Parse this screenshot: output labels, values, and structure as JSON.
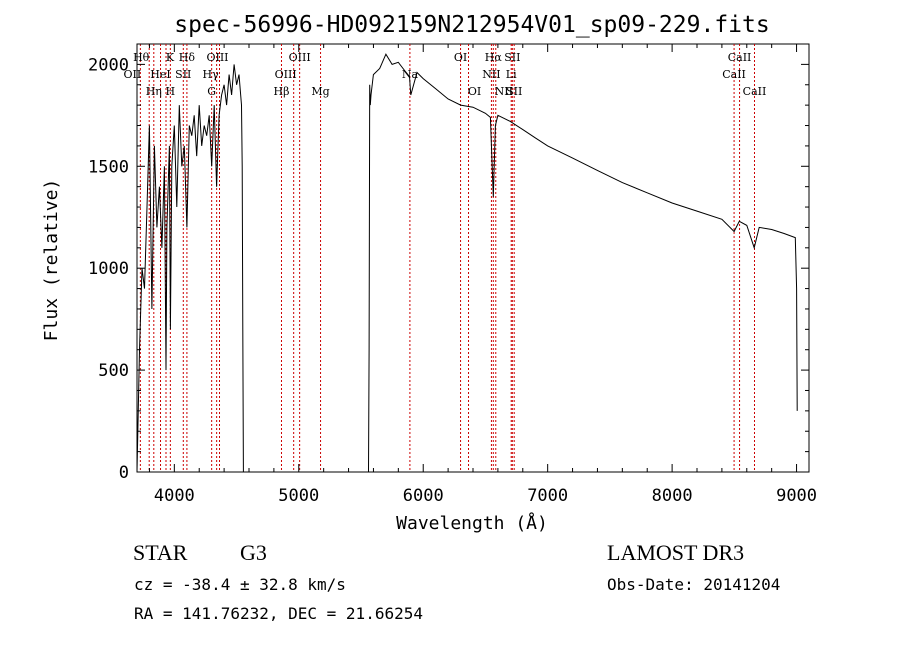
{
  "chart_data": {
    "type": "line",
    "title": "spec-56996-HD092159N212954V01_sp09-229.fits",
    "xlabel": "Wavelength (Å)",
    "ylabel": "Flux (relative)",
    "xlim": [
      3700,
      9100
    ],
    "ylim": [
      0,
      2100
    ],
    "xticks": [
      4000,
      5000,
      6000,
      7000,
      8000,
      9000
    ],
    "yticks": [
      0,
      500,
      1000,
      1500,
      2000
    ],
    "grid": false,
    "series": [
      {
        "name": "spectrum",
        "x": [
          3700,
          3720,
          3740,
          3760,
          3780,
          3800,
          3820,
          3840,
          3860,
          3880,
          3900,
          3920,
          3933,
          3940,
          3960,
          3968,
          3980,
          4000,
          4020,
          4040,
          4060,
          4080,
          4101,
          4120,
          4140,
          4160,
          4180,
          4200,
          4220,
          4240,
          4260,
          4280,
          4300,
          4320,
          4340,
          4360,
          4380,
          4400,
          4420,
          4440,
          4460,
          4480,
          4500,
          4520,
          4540,
          4545,
          4550,
          4555,
          4560,
          5560,
          5565,
          5570,
          5575,
          5580,
          5600,
          5650,
          5700,
          5750,
          5800,
          5850,
          5890,
          5900,
          5950,
          6000,
          6100,
          6200,
          6300,
          6400,
          6500,
          6540,
          6563,
          6580,
          6600,
          6700,
          6800,
          6900,
          7000,
          7200,
          7400,
          7600,
          7800,
          8000,
          8200,
          8400,
          8498,
          8540,
          8600,
          8660,
          8700,
          8800,
          8900,
          8990,
          9000,
          9005
        ],
        "y": [
          0,
          600,
          1000,
          900,
          1300,
          1700,
          800,
          1600,
          1200,
          1400,
          1100,
          1500,
          500,
          1200,
          1600,
          700,
          1500,
          1700,
          1300,
          1800,
          1500,
          1600,
          1200,
          1700,
          1650,
          1750,
          1550,
          1800,
          1600,
          1700,
          1650,
          1750,
          1500,
          1800,
          1400,
          1750,
          1850,
          1900,
          1800,
          1950,
          1850,
          2000,
          1900,
          1950,
          1800,
          1500,
          700,
          0,
          0,
          0,
          600,
          1900,
          1800,
          1850,
          1950,
          1980,
          2050,
          2000,
          2010,
          1970,
          1940,
          1850,
          1960,
          1930,
          1880,
          1830,
          1800,
          1790,
          1760,
          1740,
          1350,
          1700,
          1750,
          1720,
          1680,
          1640,
          1600,
          1540,
          1480,
          1420,
          1370,
          1320,
          1280,
          1240,
          1180,
          1230,
          1210,
          1100,
          1200,
          1190,
          1170,
          1150,
          900,
          300
        ]
      }
    ],
    "lines": [
      {
        "x": 3727,
        "label": "OII",
        "row": 2,
        "dx": -8
      },
      {
        "x": 3798,
        "label": "Hθ",
        "row": 1,
        "dx": -8
      },
      {
        "x": 3835,
        "label": "Hη",
        "row": 3,
        "dx": 0
      },
      {
        "x": 3889,
        "label": "HeI",
        "row": 2,
        "dx": 0
      },
      {
        "x": 3933,
        "label": "K",
        "row": 1,
        "dx": 4
      },
      {
        "x": 3968,
        "label": "H",
        "row": 3,
        "dx": 0
      },
      {
        "x": 4072,
        "label": "SII",
        "row": 2,
        "dx": 0
      },
      {
        "x": 4101,
        "label": "Hδ",
        "row": 1,
        "dx": 0
      },
      {
        "x": 4300,
        "label": "G",
        "row": 3,
        "dx": 0
      },
      {
        "x": 4340,
        "label": "Hγ",
        "row": 2,
        "dx": -6
      },
      {
        "x": 4363,
        "label": "OIII",
        "row": 1,
        "dx": -2
      },
      {
        "x": 4861,
        "label": "Hβ",
        "row": 3,
        "dx": 0
      },
      {
        "x": 4959,
        "label": "OIII",
        "row": 2,
        "dx": -8
      },
      {
        "x": 5007,
        "label": "OIII",
        "row": 1,
        "dx": 0
      },
      {
        "x": 5175,
        "label": "Mg",
        "row": 3,
        "dx": 0
      },
      {
        "x": 5893,
        "label": "Na",
        "row": 2,
        "dx": 0
      },
      {
        "x": 6300,
        "label": "OI",
        "row": 1,
        "dx": 0
      },
      {
        "x": 6364,
        "label": "OI",
        "row": 3,
        "dx": 6
      },
      {
        "x": 6548,
        "label": "NII",
        "row": 2,
        "dx": 0
      },
      {
        "x": 6563,
        "label": "Hα",
        "row": 1,
        "dx": 0
      },
      {
        "x": 6583,
        "label": "NII",
        "row": 3,
        "dx": 8
      },
      {
        "x": 6707,
        "label": "Li",
        "row": 2,
        "dx": 0
      },
      {
        "x": 6716,
        "label": "SII",
        "row": 1,
        "dx": 0
      },
      {
        "x": 6731,
        "label": "SII",
        "row": 3,
        "dx": 0
      },
      {
        "x": 8498,
        "label": "CaII",
        "row": 2,
        "dx": 0
      },
      {
        "x": 8542,
        "label": "CaII",
        "row": 1,
        "dx": 0
      },
      {
        "x": 8662,
        "label": "CaII",
        "row": 3,
        "dx": 0
      }
    ]
  },
  "info": {
    "object_class": "STAR",
    "subclass": "G3",
    "survey": "LAMOST DR3",
    "velocity": "cz = -38.4 ± 32.8 km/s",
    "obs_date": "Obs-Date: 20141204",
    "coordinates": "RA = 141.76232, DEC =  21.66254"
  },
  "colors": {
    "spectrum": "#000000",
    "line_marker": "#cc0000",
    "axes": "#000000"
  }
}
